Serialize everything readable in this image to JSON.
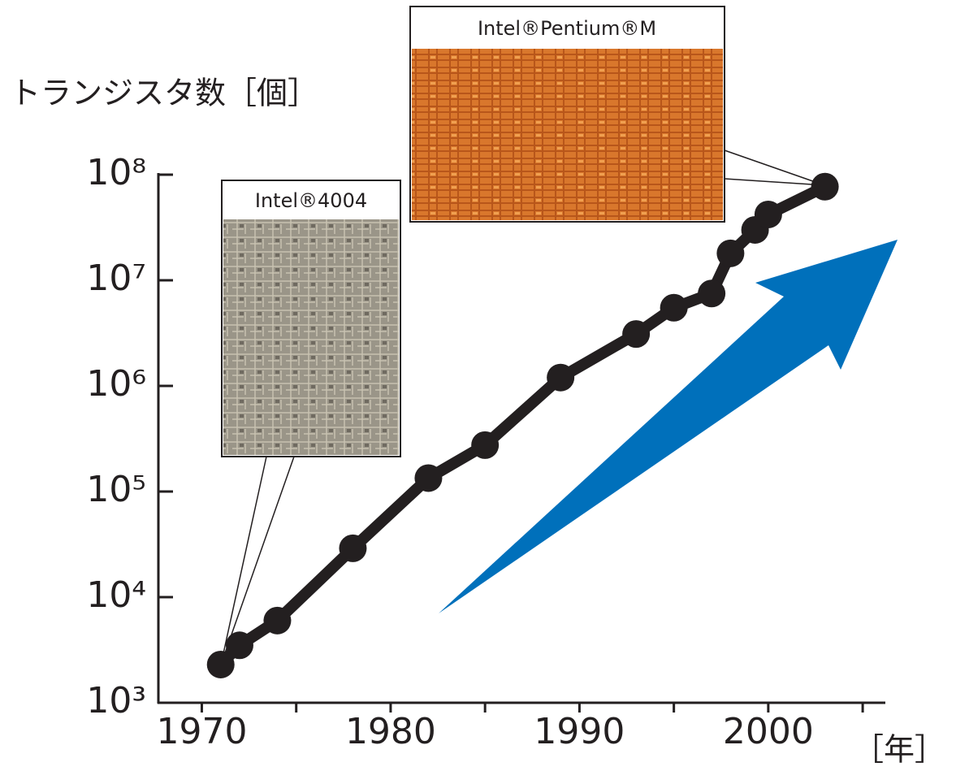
{
  "chart_data": {
    "type": "line",
    "y_label": "トランジスタ数［個］",
    "x_label": "［年］",
    "x": [
      1971,
      1972,
      1974,
      1978,
      1982,
      1985,
      1989,
      1993,
      1995,
      1997,
      1998,
      1999.3,
      2000,
      2003
    ],
    "values": [
      2300,
      3500,
      6000,
      29000,
      134000,
      275000,
      1200000,
      3100000,
      5500000,
      7500000,
      18000000,
      30000000,
      42000000,
      77000000
    ],
    "color": "#231f20",
    "log_scale_y": true,
    "xlim": [
      1967.7,
      2006.2
    ],
    "xticks": [
      1970,
      1980,
      1990,
      2000
    ],
    "xminorticks": [
      1975,
      1985,
      1995,
      2005
    ],
    "ylim": [
      1000,
      100000000
    ],
    "yticks": [
      {
        "value": 1000,
        "label": "10³"
      },
      {
        "value": 10000,
        "label": "10⁴"
      },
      {
        "value": 100000,
        "label": "10⁵"
      },
      {
        "value": 1000000,
        "label": "10⁶"
      },
      {
        "value": 10000000,
        "label": "10⁷"
      },
      {
        "value": 100000000,
        "label": "10⁸"
      }
    ],
    "annotations": [
      {
        "text": "Intel®4004"
      },
      {
        "text": "Intel®Pentium®M"
      }
    ]
  }
}
